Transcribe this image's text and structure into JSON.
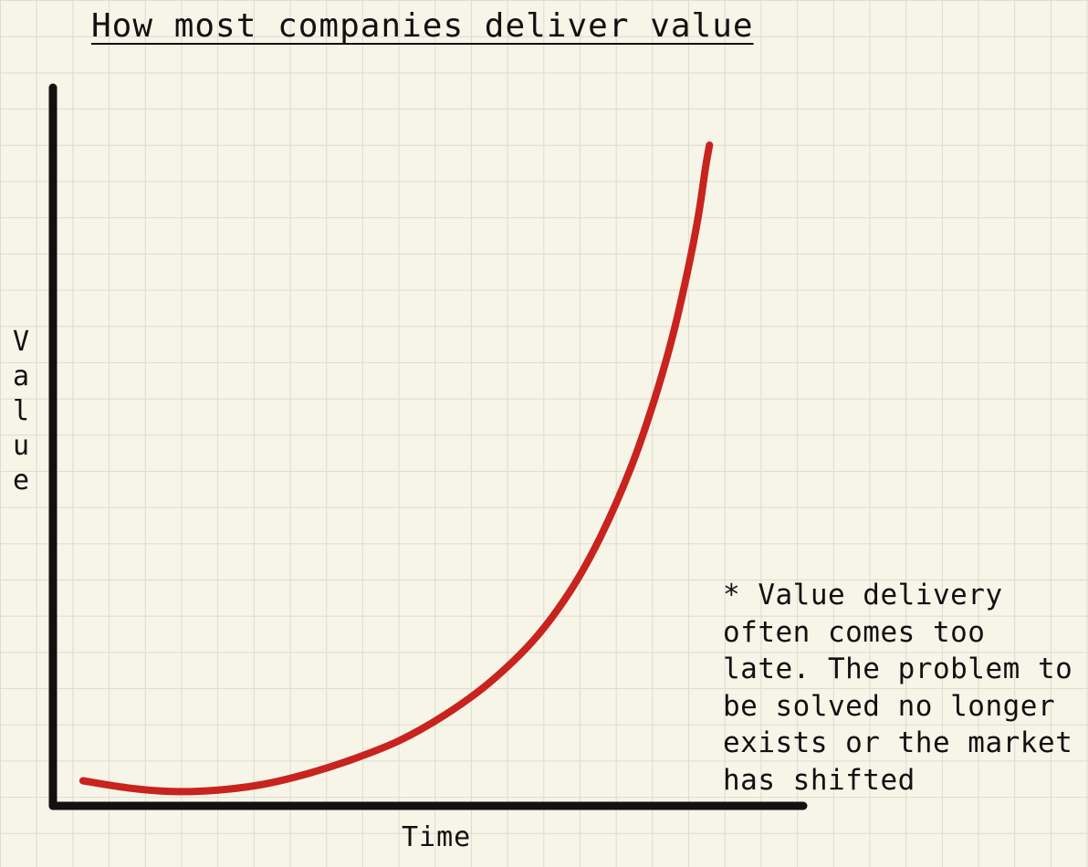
{
  "chart_data": {
    "type": "line",
    "title": "How most companies deliver value",
    "xlabel": "Time",
    "ylabel": "Value",
    "xlim": [
      0,
      10
    ],
    "ylim": [
      0,
      10
    ],
    "grid": true,
    "series": [
      {
        "color": "#c8231e",
        "points": [
          [
            0.4,
            0.35
          ],
          [
            1.0,
            0.25
          ],
          [
            1.6,
            0.2
          ],
          [
            2.2,
            0.22
          ],
          [
            2.8,
            0.3
          ],
          [
            3.4,
            0.45
          ],
          [
            4.0,
            0.65
          ],
          [
            4.6,
            0.9
          ],
          [
            5.2,
            1.25
          ],
          [
            5.8,
            1.7
          ],
          [
            6.4,
            2.3
          ],
          [
            6.9,
            3.0
          ],
          [
            7.3,
            3.75
          ],
          [
            7.7,
            4.7
          ],
          [
            8.0,
            5.6
          ],
          [
            8.25,
            6.5
          ],
          [
            8.45,
            7.4
          ],
          [
            8.6,
            8.2
          ],
          [
            8.7,
            8.9
          ],
          [
            8.75,
            9.2
          ]
        ]
      }
    ],
    "annotation": "* Value delivery\noften comes too\nlate. The problem to\nbe solved no longer\nexists or the market\nhas shifted"
  },
  "colors": {
    "background": "#f7f4e8",
    "grid": "#dcdccf",
    "axis": "#111111",
    "curve": "#c8231e"
  }
}
